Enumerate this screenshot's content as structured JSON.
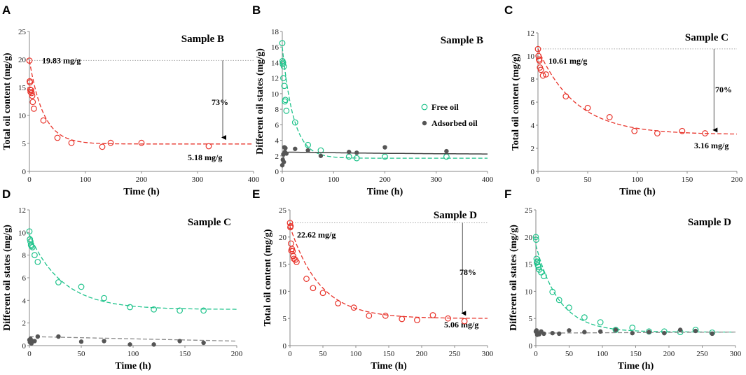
{
  "colors": {
    "red": "#e8332a",
    "green": "#1ec38b",
    "gray": "#555555",
    "fit_gray": "#8a8a8a",
    "dark_fit": "#444444"
  },
  "chart_data": [
    {
      "panel": "A",
      "type": "scatter",
      "title": "Sample B",
      "xlabel": "Time (h)",
      "ylabel": "Total oil content (mg/g)",
      "xlim": [
        0,
        400
      ],
      "ylim": [
        0,
        25
      ],
      "xticks": [
        0,
        100,
        200,
        300,
        400
      ],
      "yticks": [
        0,
        5,
        10,
        15,
        20,
        25
      ],
      "series": [
        {
          "name": "Total oil",
          "color": "red",
          "marker": "open-circle",
          "x": [
            0,
            0.5,
            1,
            1.5,
            2,
            3,
            4,
            5,
            6,
            8,
            25,
            50,
            75,
            130,
            145,
            200,
            320
          ],
          "y": [
            19.8,
            16.1,
            15.9,
            14.6,
            14.2,
            14.5,
            14.0,
            13.5,
            12.4,
            11.2,
            9.1,
            6.0,
            5.1,
            4.4,
            5.1,
            5.1,
            4.5
          ],
          "fit": {
            "y0": 19.83,
            "yinf": 4.9,
            "tau": 25
          }
        }
      ],
      "reference_line": {
        "y": 19.83,
        "label": "19.83 mg/g"
      },
      "arrow": {
        "x": 345,
        "from": 19.83,
        "to": 5.18,
        "label": "73%"
      },
      "end_label": "5.18 mg/g"
    },
    {
      "panel": "B",
      "type": "scatter",
      "title": "Sample B",
      "xlabel": "Time (h)",
      "ylabel": "Different oil states (mg/g)",
      "xlim": [
        0,
        400
      ],
      "ylim": [
        0,
        18
      ],
      "xticks": [
        0,
        100,
        200,
        300,
        400
      ],
      "yticks": [
        0,
        2,
        4,
        6,
        8,
        10,
        12,
        14,
        16,
        18
      ],
      "legend": [
        {
          "label": "Free oil",
          "color": "green",
          "marker": "open-circle"
        },
        {
          "label": "Adsorbed oil",
          "color": "gray",
          "marker": "filled-circle"
        }
      ],
      "series": [
        {
          "name": "Free oil",
          "color": "green",
          "marker": "open-circle",
          "x": [
            0,
            0.5,
            1,
            1.5,
            2,
            3,
            4,
            5,
            6,
            8,
            25,
            50,
            75,
            130,
            145,
            200,
            320
          ],
          "y": [
            16.5,
            14.2,
            13.8,
            14.0,
            12.0,
            13.5,
            11.0,
            9.0,
            9.2,
            7.8,
            6.3,
            3.4,
            2.7,
            1.9,
            1.7,
            1.9,
            1.9
          ],
          "fit": {
            "y0": 16.0,
            "yinf": 1.7,
            "tau": 22
          }
        },
        {
          "name": "Adsorbed oil",
          "color": "gray",
          "marker": "filled-circle",
          "x": [
            0,
            1,
            2,
            3,
            4,
            5,
            6,
            8,
            25,
            50,
            75,
            130,
            145,
            200,
            320
          ],
          "y": [
            0.8,
            1.5,
            2.2,
            1.2,
            3.1,
            2.5,
            3.0,
            2.3,
            2.9,
            2.7,
            2.0,
            2.5,
            2.4,
            3.1,
            2.6
          ],
          "fit_kind": "rise_decay"
        }
      ]
    },
    {
      "panel": "C",
      "type": "scatter",
      "title": "Sample C",
      "xlabel": "Time (h)",
      "ylabel": "Total oil content (mg/g)",
      "xlim": [
        0,
        200
      ],
      "ylim": [
        0,
        12
      ],
      "xticks": [
        0,
        50,
        100,
        150,
        200
      ],
      "yticks": [
        0,
        2,
        4,
        6,
        8,
        10,
        12
      ],
      "series": [
        {
          "name": "Total oil",
          "color": "red",
          "marker": "open-circle",
          "x": [
            0,
            0.5,
            1,
            1.5,
            2,
            3,
            5,
            8,
            28,
            50,
            72,
            97,
            120,
            145,
            168
          ],
          "y": [
            10.6,
            10.0,
            9.7,
            9.6,
            9.0,
            8.8,
            8.3,
            8.4,
            6.5,
            5.5,
            4.7,
            3.5,
            3.3,
            3.5,
            3.3
          ],
          "fit": {
            "y0": 10.61,
            "yinf": 3.2,
            "tau": 38
          }
        }
      ],
      "reference_line": {
        "y": 10.61,
        "label": "10.61 mg/g"
      },
      "arrow": {
        "x": 177,
        "from": 10.61,
        "to": 3.16,
        "label": "70%"
      },
      "end_label": "3.16 mg/g"
    },
    {
      "panel": "D",
      "type": "scatter",
      "title": "Sample C",
      "xlabel": "Time (h)",
      "ylabel": "Different oil states (mg/g)",
      "xlim": [
        0,
        200
      ],
      "ylim": [
        0,
        12
      ],
      "xticks": [
        0,
        50,
        100,
        150,
        200
      ],
      "yticks": [
        0,
        2,
        4,
        6,
        8,
        10,
        12
      ],
      "series": [
        {
          "name": "Free oil",
          "color": "green",
          "marker": "open-circle",
          "x": [
            0,
            0.5,
            1,
            1.5,
            2,
            3,
            5,
            8,
            28,
            50,
            72,
            97,
            120,
            145,
            168
          ],
          "y": [
            10.1,
            9.4,
            9.2,
            8.9,
            8.8,
            8.7,
            8.0,
            7.4,
            5.6,
            5.2,
            4.2,
            3.4,
            3.2,
            3.1,
            3.1
          ],
          "fit": {
            "y0": 9.8,
            "yinf": 3.2,
            "tau": 32
          }
        },
        {
          "name": "Adsorbed oil",
          "color": "gray",
          "marker": "filled-circle",
          "x": [
            0,
            0.5,
            1,
            2,
            3,
            5,
            8,
            28,
            50,
            72,
            97,
            120,
            145,
            168
          ],
          "y": [
            0.5,
            0.3,
            0.6,
            0.2,
            0.4,
            0.4,
            0.8,
            0.8,
            0.35,
            0.4,
            0.1,
            0.1,
            0.4,
            0.25
          ],
          "fit_kind": "flat",
          "fit_start": 0.8,
          "fit_end": 0.4
        }
      ]
    },
    {
      "panel": "E",
      "type": "scatter",
      "title": "Sample D",
      "xlabel": "Time (h)",
      "ylabel": "Total oil content (mg/g)",
      "xlim": [
        0,
        300
      ],
      "ylim": [
        0,
        25
      ],
      "xticks": [
        0,
        50,
        100,
        150,
        200,
        250,
        300
      ],
      "yticks": [
        0,
        5,
        10,
        15,
        20,
        25
      ],
      "series": [
        {
          "name": "Total oil",
          "color": "red",
          "marker": "open-circle",
          "x": [
            0,
            0.5,
            1,
            1.5,
            2,
            3,
            4,
            5,
            6,
            8,
            10,
            25,
            35,
            50,
            73,
            97,
            120,
            145,
            170,
            193,
            217,
            240,
            265
          ],
          "y": [
            22.6,
            21.8,
            22.0,
            18.8,
            17.5,
            17.8,
            17.4,
            16.5,
            16.0,
            15.8,
            15.4,
            12.3,
            10.6,
            9.7,
            7.8,
            7.0,
            5.5,
            5.5,
            4.9,
            4.7,
            5.6,
            5.0,
            4.5
          ],
          "fit": {
            "y0": 22.0,
            "yinf": 5.0,
            "tau": 45
          }
        }
      ],
      "reference_line": {
        "y": 22.62,
        "label": "22.62 mg/g"
      },
      "arrow": {
        "x": 262,
        "from": 22.62,
        "to": 5.06,
        "label": "78%"
      },
      "end_label": "5.06 mg/g"
    },
    {
      "panel": "F",
      "type": "scatter",
      "title": "Sample D",
      "xlabel": "Time (h)",
      "ylabel": "Different oil states (mg/g)",
      "xlim": [
        0,
        300
      ],
      "ylim": [
        0,
        25
      ],
      "xticks": [
        0,
        50,
        100,
        150,
        200,
        250,
        300
      ],
      "yticks": [
        0,
        5,
        10,
        15,
        20,
        25
      ],
      "series": [
        {
          "name": "Free oil",
          "color": "green",
          "marker": "open-circle",
          "x": [
            0,
            0.5,
            1,
            1.5,
            2,
            3,
            4,
            5,
            8,
            12,
            25,
            35,
            50,
            73,
            97,
            120,
            145,
            170,
            193,
            217,
            240,
            265
          ],
          "y": [
            20.0,
            19.5,
            16.0,
            15.3,
            15.5,
            14.8,
            14.5,
            14.0,
            13.5,
            12.8,
            9.9,
            8.4,
            7.0,
            5.2,
            4.3,
            2.9,
            3.3,
            2.6,
            2.6,
            2.5,
            2.9,
            2.4
          ],
          "fit": {
            "y0": 18.5,
            "yinf": 2.5,
            "tau": 35
          }
        },
        {
          "name": "Adsorbed oil",
          "color": "gray",
          "marker": "filled-circle",
          "x": [
            0,
            1,
            2,
            3,
            5,
            8,
            12,
            25,
            35,
            50,
            73,
            97,
            120,
            145,
            170,
            193,
            217,
            240,
            265
          ],
          "y": [
            2.6,
            2.8,
            2.0,
            2.3,
            2.1,
            2.6,
            2.2,
            2.3,
            2.2,
            2.8,
            2.5,
            2.6,
            2.9,
            2.3,
            2.5,
            2.3,
            2.9,
            2.7,
            2.2
          ],
          "fit_kind": "flat",
          "fit_start": 2.3,
          "fit_end": 2.5
        }
      ]
    }
  ]
}
